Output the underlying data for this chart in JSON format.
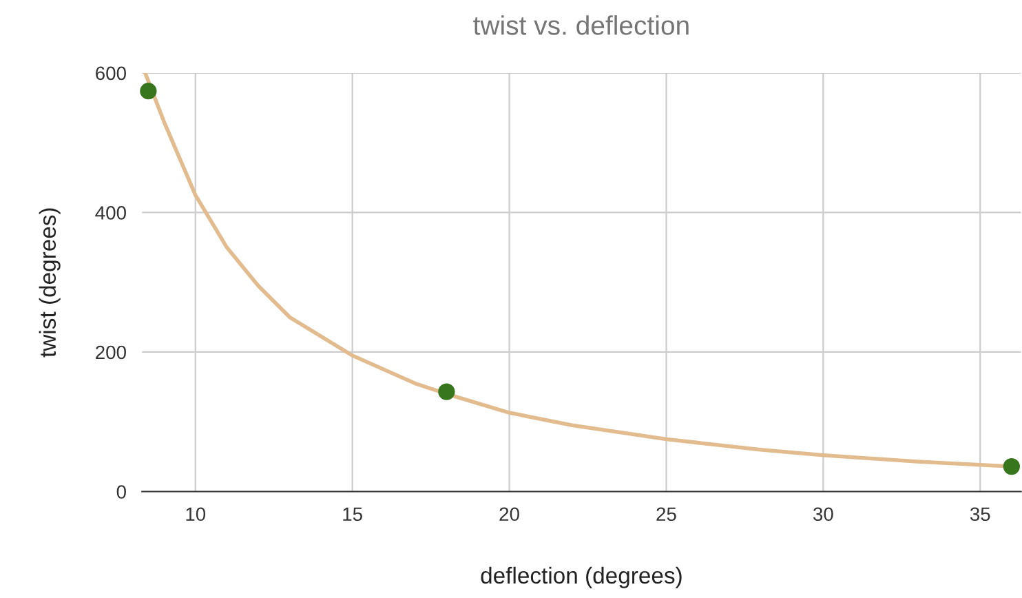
{
  "chart_data": {
    "type": "scatter",
    "title": "twist vs. deflection",
    "xlabel": "deflection (degrees)",
    "ylabel": "twist (degrees)",
    "x": [
      8.5,
      18,
      36
    ],
    "series": [
      {
        "color": "#38761d",
        "marker": "circle",
        "values": [
          574,
          143,
          36
        ]
      },
      {
        "type": "line",
        "marker": "none",
        "color": "#e2bc8f",
        "x": [
          8.4,
          9,
          10,
          11,
          12,
          13,
          15,
          17,
          18,
          20,
          22,
          25,
          28,
          30,
          33,
          36
        ],
        "values": [
          600,
          530,
          425,
          350,
          295,
          250,
          195,
          155,
          140,
          113,
          95,
          75,
          60,
          52,
          43,
          36
        ]
      }
    ],
    "xlim": [
      8.3,
      36.3
    ],
    "xticks": [
      10,
      15,
      20,
      25,
      30,
      35
    ],
    "ylim": [
      0,
      600
    ],
    "yticks": [
      0,
      200,
      400,
      600
    ],
    "grid": true
  }
}
